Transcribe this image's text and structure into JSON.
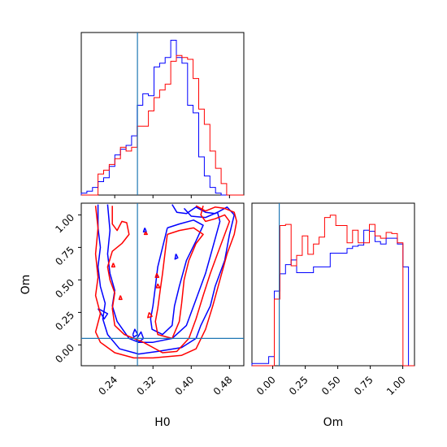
{
  "chart_data": [
    {
      "type": "histogram",
      "panel": "H0 marginal",
      "xlim": [
        0.17,
        0.51
      ],
      "bin_edges": [
        0.17,
        0.1817,
        0.1934,
        0.2051,
        0.2168,
        0.2285,
        0.2402,
        0.2519,
        0.2636,
        0.2753,
        0.287,
        0.2987,
        0.3104,
        0.3221,
        0.3338,
        0.3455,
        0.3572,
        0.3689,
        0.3806,
        0.3923,
        0.404,
        0.4157,
        0.4274,
        0.4391,
        0.4508,
        0.4625,
        0.4742,
        0.4859,
        0.4976,
        0.51
      ],
      "series": [
        {
          "color": "#0000ff",
          "values": [
            1,
            2,
            4,
            7,
            9,
            15,
            21,
            24,
            26,
            31,
            47,
            53,
            52,
            67,
            69,
            72,
            81,
            72,
            69,
            47,
            43,
            20,
            10,
            4,
            1,
            0,
            0,
            0,
            0
          ]
        },
        {
          "color": "#ff0000",
          "values": [
            0,
            0,
            0,
            11,
            13,
            16,
            19,
            25,
            23,
            25,
            36,
            36,
            44,
            51,
            55,
            58,
            70,
            73,
            72,
            71,
            61,
            45,
            37,
            23,
            14,
            6,
            0,
            0,
            0
          ]
        }
      ],
      "truth_line": 0.2875
    },
    {
      "type": "contour",
      "panel": "H0 vs Om",
      "xlabel": "H0",
      "ylabel": "Om",
      "xlim": [
        0.17,
        0.51
      ],
      "ylim": [
        -0.16,
        1.09
      ],
      "x_ticks": [
        "0.24",
        "0.32",
        "0.40",
        "0.48"
      ],
      "y_ticks": [
        "0.00",
        "0.25",
        "0.50",
        "0.75",
        "1.00"
      ],
      "truth_x": 0.2875,
      "truth_y": 0.05,
      "series": [
        {
          "color": "#0000ff",
          "contours": [
            [
              [
                0.205,
                1.08
              ],
              [
                0.205,
                0.9
              ],
              [
                0.21,
                0.75
              ],
              [
                0.205,
                0.6
              ],
              [
                0.21,
                0.45
              ],
              [
                0.22,
                0.32
              ],
              [
                0.215,
                0.2
              ],
              [
                0.225,
                0.08
              ],
              [
                0.25,
                -0.03
              ],
              [
                0.29,
                -0.07
              ],
              [
                0.33,
                -0.05
              ],
              [
                0.38,
                -0.02
              ],
              [
                0.41,
                0.05
              ],
              [
                0.42,
                0.15
              ],
              [
                0.44,
                0.3
              ],
              [
                0.45,
                0.45
              ],
              [
                0.47,
                0.65
              ],
              [
                0.48,
                0.85
              ],
              [
                0.49,
                1.0
              ],
              [
                0.475,
                1.06
              ],
              [
                0.45,
                1.01
              ],
              [
                0.43,
                1.02
              ],
              [
                0.41,
                1.06
              ],
              [
                0.39,
                1.01
              ],
              [
                0.37,
                1.02
              ],
              [
                0.36,
                1.08
              ]
            ],
            [
              [
                0.225,
                1.08
              ],
              [
                0.23,
                0.88
              ],
              [
                0.225,
                0.7
              ],
              [
                0.23,
                0.55
              ],
              [
                0.24,
                0.42
              ],
              [
                0.235,
                0.3
              ],
              [
                0.245,
                0.18
              ],
              [
                0.27,
                0.05
              ],
              [
                0.29,
                0.02
              ],
              [
                0.32,
                0.02
              ],
              [
                0.36,
                0.05
              ],
              [
                0.39,
                0.15
              ],
              [
                0.41,
                0.35
              ],
              [
                0.43,
                0.55
              ],
              [
                0.445,
                0.75
              ],
              [
                0.46,
                0.95
              ],
              [
                0.455,
                1.02
              ],
              [
                0.43,
                0.98
              ],
              [
                0.4,
                0.99
              ],
              [
                0.385,
                1.05
              ]
            ],
            [
              [
                0.35,
                0.9
              ],
              [
                0.34,
                0.75
              ],
              [
                0.33,
                0.6
              ],
              [
                0.325,
                0.45
              ],
              [
                0.32,
                0.3
              ],
              [
                0.315,
                0.2
              ],
              [
                0.318,
                0.12
              ],
              [
                0.34,
                0.08
              ],
              [
                0.36,
                0.15
              ],
              [
                0.365,
                0.3
              ],
              [
                0.375,
                0.45
              ],
              [
                0.39,
                0.65
              ],
              [
                0.41,
                0.8
              ],
              [
                0.425,
                0.92
              ],
              [
                0.405,
                0.96
              ],
              [
                0.375,
                0.93
              ],
              [
                0.35,
                0.9
              ]
            ],
            [
              [
                0.285,
                0.04
              ],
              [
                0.295,
                0.1
              ],
              [
                0.3,
                0.05
              ],
              [
                0.29,
                0.02
              ],
              [
                0.285,
                0.04
              ]
            ],
            [
              [
                0.278,
                0.08
              ],
              [
                0.282,
                0.12
              ],
              [
                0.288,
                0.08
              ],
              [
                0.28,
                0.06
              ],
              [
                0.278,
                0.08
              ]
            ],
            [
              [
                0.205,
                0.28
              ],
              [
                0.225,
                0.24
              ],
              [
                0.218,
                0.2
              ],
              [
                0.205,
                0.28
              ]
            ],
            [
              [
                0.368,
                0.7
              ],
              [
                0.372,
                0.67
              ],
              [
                0.366,
                0.66
              ],
              [
                0.368,
                0.7
              ]
            ],
            [
              [
                0.303,
                0.9
              ],
              [
                0.306,
                0.87
              ],
              [
                0.3,
                0.87
              ],
              [
                0.303,
                0.9
              ]
            ]
          ]
        },
        {
          "color": "#ff0000",
          "contours": [
            [
              [
                0.2,
                1.07
              ],
              [
                0.205,
                0.9
              ],
              [
                0.2,
                0.7
              ],
              [
                0.205,
                0.52
              ],
              [
                0.2,
                0.38
              ],
              [
                0.21,
                0.24
              ],
              [
                0.2,
                0.1
              ],
              [
                0.21,
                0.02
              ],
              [
                0.24,
                -0.06
              ],
              [
                0.28,
                -0.1
              ],
              [
                0.32,
                -0.1
              ],
              [
                0.38,
                -0.08
              ],
              [
                0.41,
                -0.03
              ],
              [
                0.43,
                0.12
              ],
              [
                0.445,
                0.3
              ],
              [
                0.46,
                0.5
              ],
              [
                0.475,
                0.7
              ],
              [
                0.49,
                0.85
              ],
              [
                0.495,
                0.95
              ],
              [
                0.49,
                1.02
              ],
              [
                0.47,
                1.05
              ],
              [
                0.45,
                1.06
              ],
              [
                0.43,
                1.03
              ],
              [
                0.41,
                1.07
              ]
            ],
            [
              [
                0.235,
                1.07
              ],
              [
                0.235,
                0.93
              ],
              [
                0.245,
                0.88
              ],
              [
                0.255,
                0.95
              ],
              [
                0.265,
                0.94
              ],
              [
                0.27,
                0.85
              ],
              [
                0.255,
                0.78
              ],
              [
                0.235,
                0.72
              ],
              [
                0.225,
                0.6
              ],
              [
                0.23,
                0.5
              ],
              [
                0.24,
                0.4
              ],
              [
                0.235,
                0.28
              ],
              [
                0.24,
                0.15
              ],
              [
                0.26,
                0.08
              ],
              [
                0.3,
                0.02
              ],
              [
                0.34,
                -0.06
              ],
              [
                0.37,
                -0.05
              ],
              [
                0.395,
                0.05
              ],
              [
                0.41,
                0.2
              ],
              [
                0.425,
                0.38
              ],
              [
                0.44,
                0.55
              ],
              [
                0.455,
                0.7
              ],
              [
                0.47,
                0.85
              ],
              [
                0.48,
                0.95
              ],
              [
                0.47,
                1.0
              ],
              [
                0.45,
                0.97
              ],
              [
                0.43,
                0.95
              ],
              [
                0.42,
                1.0
              ],
              [
                0.425,
                1.07
              ]
            ],
            [
              [
                0.35,
                0.85
              ],
              [
                0.345,
                0.7
              ],
              [
                0.34,
                0.55
              ],
              [
                0.335,
                0.42
              ],
              [
                0.33,
                0.28
              ],
              [
                0.325,
                0.18
              ],
              [
                0.33,
                0.08
              ],
              [
                0.36,
                0.05
              ],
              [
                0.375,
                0.18
              ],
              [
                0.38,
                0.32
              ],
              [
                0.385,
                0.5
              ],
              [
                0.395,
                0.65
              ],
              [
                0.41,
                0.78
              ],
              [
                0.425,
                0.85
              ],
              [
                0.405,
                0.9
              ],
              [
                0.375,
                0.88
              ],
              [
                0.35,
                0.85
              ]
            ],
            [
              [
                0.237,
                0.63
              ],
              [
                0.24,
                0.6
              ],
              [
                0.234,
                0.6
              ],
              [
                0.237,
                0.63
              ]
            ],
            [
              [
                0.252,
                0.38
              ],
              [
                0.255,
                0.35
              ],
              [
                0.249,
                0.35
              ],
              [
                0.252,
                0.38
              ]
            ],
            [
              [
                0.33,
                0.47
              ],
              [
                0.334,
                0.44
              ],
              [
                0.327,
                0.44
              ],
              [
                0.33,
                0.47
              ]
            ],
            [
              [
                0.328,
                0.55
              ],
              [
                0.332,
                0.52
              ],
              [
                0.325,
                0.52
              ],
              [
                0.328,
                0.55
              ]
            ],
            [
              [
                0.312,
                0.25
              ],
              [
                0.318,
                0.22
              ],
              [
                0.309,
                0.21
              ],
              [
                0.312,
                0.25
              ]
            ],
            [
              [
                0.305,
                0.87
              ],
              [
                0.308,
                0.85
              ],
              [
                0.302,
                0.85
              ],
              [
                0.305,
                0.87
              ]
            ]
          ]
        }
      ]
    },
    {
      "type": "histogram",
      "panel": "Om marginal",
      "xlabel": "Om",
      "xlim": [
        -0.16,
        1.09
      ],
      "x_ticks": [
        "0.00",
        "0.25",
        "0.50",
        "0.75",
        "1.00"
      ],
      "bin_edges": [
        -0.16,
        -0.117,
        -0.074,
        -0.031,
        0.012,
        0.055,
        0.098,
        0.141,
        0.184,
        0.227,
        0.27,
        0.313,
        0.356,
        0.399,
        0.442,
        0.485,
        0.528,
        0.571,
        0.614,
        0.657,
        0.7,
        0.743,
        0.786,
        0.829,
        0.872,
        0.915,
        0.958,
        1.001,
        1.044,
        1.09
      ],
      "series": [
        {
          "color": "#0000ff",
          "values": [
            2,
            2,
            2,
            8,
            65,
            80,
            88,
            92,
            81,
            81,
            81,
            86,
            86,
            86,
            98,
            98,
            98,
            102,
            104,
            105,
            118,
            117,
            108,
            106,
            111,
            111,
            106,
            86,
            0
          ]
        },
        {
          "color": "#ff0000",
          "values": [
            0,
            0,
            0,
            0,
            58,
            122,
            123,
            87,
            96,
            113,
            97,
            106,
            112,
            129,
            131,
            122,
            122,
            107,
            118,
            107,
            107,
            123,
            113,
            111,
            116,
            115,
            107,
            0,
            0
          ]
        }
      ],
      "truth_line": 0.05
    }
  ]
}
